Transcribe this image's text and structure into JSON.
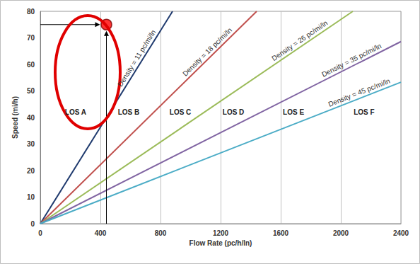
{
  "chart_data": {
    "type": "line",
    "x_label": "Flow Rate (pc/h/ln)",
    "y_label": "Speed (mi/h)",
    "xlim": [
      0,
      2400
    ],
    "xticks": [
      0,
      400,
      800,
      1200,
      1600,
      2000,
      2400
    ],
    "ylim": [
      0,
      80
    ],
    "yticks": [
      0,
      10,
      20,
      30,
      40,
      50,
      60,
      70,
      80
    ],
    "grid": true,
    "series": [
      {
        "name": "Density = 11 pc/mi/ln",
        "color": "#1f3a6e",
        "x": [
          0,
          880
        ],
        "values": [
          0,
          80
        ]
      },
      {
        "name": "Density = 18 pc/mi/ln",
        "color": "#c0504d",
        "x": [
          0,
          1440
        ],
        "values": [
          0,
          80
        ]
      },
      {
        "name": "Density = 26 pc/mi/ln",
        "color": "#9bbb59",
        "x": [
          0,
          2080
        ],
        "values": [
          0,
          80
        ]
      },
      {
        "name": "Density = 35 pc/mi/ln",
        "color": "#8064a2",
        "x": [
          0,
          2400
        ],
        "values": [
          0,
          68.6
        ]
      },
      {
        "name": "Density = 45 pc/mi/ln",
        "color": "#4bacc6",
        "x": [
          0,
          2400
        ],
        "values": [
          0,
          53.3
        ]
      },
      {
        "type": "scatter",
        "color": "#ff0000",
        "x": [
          440
        ],
        "values": [
          75
        ]
      }
    ],
    "annotations": [
      {
        "text": "LOS A",
        "x": 235,
        "y": 42
      },
      {
        "text": "LOS B",
        "x": 588,
        "y": 42
      },
      {
        "text": "LOS C",
        "x": 932,
        "y": 42
      },
      {
        "text": "LOS D",
        "x": 1285,
        "y": 42
      },
      {
        "text": "LOS E",
        "x": 1685,
        "y": 42
      },
      {
        "text": "LOS F",
        "x": 2155,
        "y": 42
      }
    ]
  }
}
